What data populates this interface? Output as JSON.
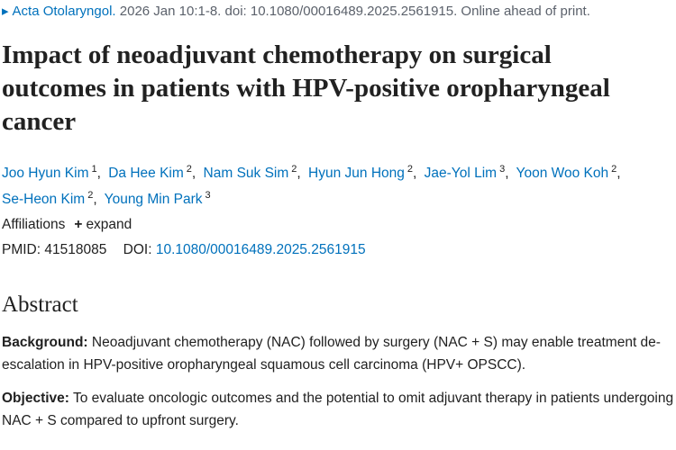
{
  "citation": {
    "journal": "Acta Otolaryngol.",
    "details": "2026 Jan 10:1-8. doi: 10.1080/00016489.2025.2561915. Online ahead of print."
  },
  "title": "Impact of neoadjuvant chemotherapy on surgical outcomes in patients with HPV-positive oropharyngeal cancer",
  "author_separator": ",",
  "authors": [
    {
      "name": "Joo Hyun Kim",
      "affiliation": "1"
    },
    {
      "name": "Da Hee Kim",
      "affiliation": "2"
    },
    {
      "name": "Nam Suk Sim",
      "affiliation": "2"
    },
    {
      "name": "Hyun Jun Hong",
      "affiliation": "2"
    },
    {
      "name": "Jae-Yol Lim",
      "affiliation": "3"
    },
    {
      "name": "Yoon Woo Koh",
      "affiliation": "2"
    },
    {
      "name": "Se-Heon Kim",
      "affiliation": "2"
    },
    {
      "name": "Young Min Park",
      "affiliation": "3"
    }
  ],
  "affiliations": {
    "label": "Affiliations",
    "toggle": "expand"
  },
  "identifiers": {
    "pmid_label": "PMID:",
    "pmid": "41518085",
    "doi_label": "DOI:",
    "doi": "10.1080/00016489.2025.2561915"
  },
  "abstract": {
    "heading": "Abstract",
    "sections": [
      {
        "label": "Background:",
        "text": "Neoadjuvant chemotherapy (NAC) followed by surgery (NAC + S) may enable treatment de-escalation in HPV-positive oropharyngeal squamous cell carcinoma (HPV+ OPSCC)."
      },
      {
        "label": "Objective:",
        "text": "To evaluate oncologic outcomes and the potential to omit adjuvant therapy in patients undergoing NAC + S compared to upfront surgery."
      }
    ]
  }
}
